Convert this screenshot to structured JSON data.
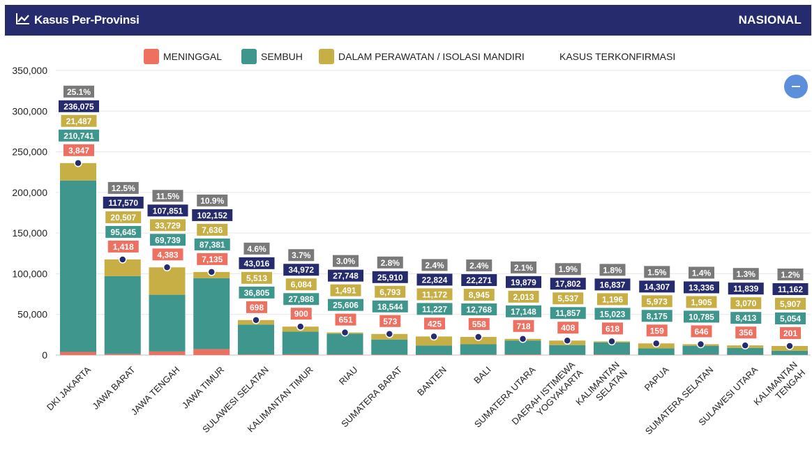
{
  "header": {
    "title": "Kasus Per-Provinsi",
    "right_label": "NASIONAL",
    "icon": "line-chart-icon"
  },
  "colors": {
    "header_bg": "#262b6e",
    "meninggal": "#ee7061",
    "sembuh": "#3e968c",
    "perawatan": "#c7af45",
    "total_badge": "#262b6e",
    "pct_badge": "#797979",
    "zoom_button": "#5b8fdc"
  },
  "zoom_button": {
    "icon": "zoom-out-minus-icon"
  },
  "chart_data": {
    "type": "bar",
    "stacked": true,
    "ylim": [
      0,
      350000
    ],
    "y_ticks": [
      0,
      50000,
      100000,
      150000,
      200000,
      250000,
      300000,
      350000
    ],
    "y_tick_labels": [
      "0",
      "50,000",
      "100,000",
      "150,000",
      "200,000",
      "250,000",
      "300,000",
      "350,000"
    ],
    "grid": true,
    "legend_position": "top-center",
    "legend": [
      {
        "key": "meninggal",
        "label": "MENINGGAL"
      },
      {
        "key": "sembuh",
        "label": "SEMBUH"
      },
      {
        "key": "perawatan",
        "label": "DALAM PERAWATAN / ISOLASI MANDIRI"
      },
      {
        "key": "total",
        "label": "KASUS TERKONFIRMASI"
      }
    ],
    "categories": [
      [
        "DKI JAKARTA"
      ],
      [
        "JAWA BARAT"
      ],
      [
        "JAWA TENGAH"
      ],
      [
        "JAWA TIMUR"
      ],
      [
        "SULAWESI SELATAN"
      ],
      [
        "KALIMANTAN TIMUR"
      ],
      [
        "RIAU"
      ],
      [
        "SUMATERA BARAT"
      ],
      [
        "BANTEN"
      ],
      [
        "BALI"
      ],
      [
        "SUMATERA UTARA"
      ],
      [
        "DAERAH ISTIMEWA",
        "YOGYAKARTA"
      ],
      [
        "KALIMANTAN",
        "SELATAN"
      ],
      [
        "PAPUA"
      ],
      [
        "SUMATERA SELATAN"
      ],
      [
        "SULAWESI UTARA"
      ],
      [
        "KALIMANTAN",
        "TENGAH"
      ]
    ],
    "series": [
      {
        "key": "meninggal",
        "name": "MENINGGAL",
        "values": [
          3847,
          1418,
          4383,
          7135,
          698,
          900,
          651,
          573,
          425,
          558,
          718,
          408,
          618,
          159,
          646,
          356,
          201
        ]
      },
      {
        "key": "sembuh",
        "name": "SEMBUH",
        "values": [
          210741,
          95645,
          69739,
          87381,
          36805,
          27988,
          25606,
          18544,
          11227,
          12768,
          17148,
          11857,
          15023,
          8175,
          10785,
          8413,
          5054
        ]
      },
      {
        "key": "perawatan",
        "name": "DALAM PERAWATAN / ISOLASI MANDIRI",
        "values": [
          21487,
          20507,
          33729,
          7636,
          5513,
          6084,
          1491,
          6793,
          11172,
          8945,
          2013,
          5537,
          1196,
          5973,
          1905,
          3070,
          5907
        ]
      }
    ],
    "total": {
      "key": "total",
      "name": "KASUS TERKONFIRMASI",
      "values": [
        236075,
        117570,
        107851,
        102152,
        43016,
        34972,
        27748,
        25910,
        22824,
        22271,
        19879,
        17802,
        16837,
        14307,
        13336,
        11839,
        11162
      ]
    },
    "percent": [
      "25.1%",
      "12.5%",
      "11.5%",
      "10.9%",
      "4.6%",
      "3.7%",
      "3.0%",
      "2.8%",
      "2.4%",
      "2.4%",
      "2.1%",
      "1.9%",
      "1.8%",
      "1.5%",
      "1.4%",
      "1.3%",
      "1.2%"
    ]
  }
}
